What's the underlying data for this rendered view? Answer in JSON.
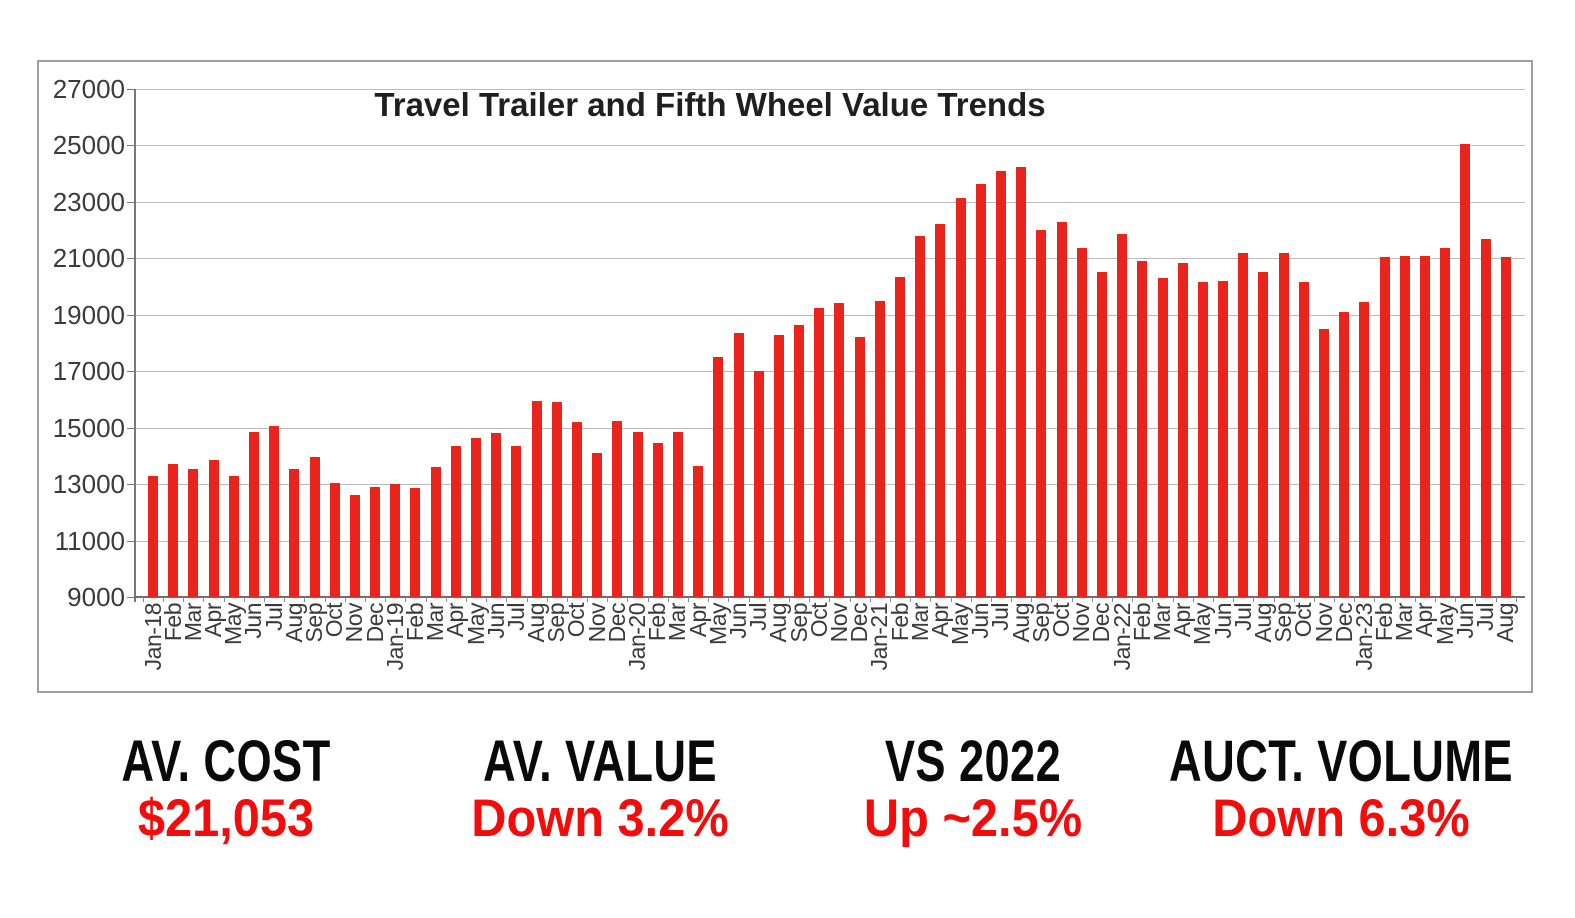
{
  "chart_data": {
    "type": "bar",
    "title": "Travel Trailer and Fifth Wheel Value Trends",
    "xlabel": "",
    "ylabel": "",
    "ylim": [
      9000,
      27000
    ],
    "ytick_step": 2000,
    "yticks": [
      9000,
      11000,
      13000,
      15000,
      17000,
      19000,
      21000,
      23000,
      25000,
      27000
    ],
    "grid": true,
    "legend_position": "none",
    "bar_color": "#e8241d",
    "categories": [
      "Jan-18",
      "Feb",
      "Mar",
      "Apr",
      "May",
      "Jun",
      "Jul",
      "Aug",
      "Sep",
      "Oct",
      "Nov",
      "Dec",
      "Jan-19",
      "Feb",
      "Mar",
      "Apr",
      "May",
      "Jun",
      "Jul",
      "Aug",
      "Sep",
      "Oct",
      "Nov",
      "Dec",
      "Jan-20",
      "Feb",
      "Mar",
      "Apr",
      "May",
      "Jun",
      "Jul",
      "Aug",
      "Sep",
      "Oct",
      "Nov",
      "Dec",
      "Jan-21",
      "Feb",
      "Mar",
      "Apr",
      "May",
      "Jun",
      "Jul",
      "Aug",
      "Sep",
      "Oct",
      "Nov",
      "Dec",
      "Jan-22",
      "Feb",
      "Mar",
      "Apr",
      "May",
      "Jun",
      "Jul",
      "Aug",
      "Sep",
      "Oct",
      "Nov",
      "Dec",
      "Jan-23",
      "Feb",
      "Mar",
      "Apr",
      "May",
      "Jun",
      "Jul",
      "Aug"
    ],
    "values": [
      13300,
      13700,
      13550,
      13850,
      13300,
      14850,
      15050,
      13550,
      13950,
      13050,
      12600,
      12900,
      13000,
      12850,
      13600,
      14350,
      14650,
      14800,
      14350,
      15950,
      15900,
      15200,
      14100,
      15250,
      14850,
      14450,
      14850,
      13650,
      17500,
      18350,
      17000,
      18300,
      18650,
      19250,
      19400,
      18200,
      19500,
      20350,
      21800,
      22200,
      23150,
      23650,
      24100,
      24250,
      22000,
      22300,
      21350,
      20500,
      21850,
      20900,
      20300,
      20850,
      20150,
      20200,
      21200,
      20500,
      21200,
      20150,
      18500,
      19100,
      19450,
      21050,
      21100,
      21100,
      21350,
      25050,
      21700,
      21053
    ]
  },
  "stats": [
    {
      "label": "AV. COST",
      "value": "$21,053"
    },
    {
      "label": "AV. VALUE",
      "value": "Down 3.2%"
    },
    {
      "label": "VS 2022",
      "value": "Up ~2.5%"
    },
    {
      "label": "AUCT. VOLUME",
      "value": "Down 6.3%"
    }
  ],
  "colors": {
    "bar_red": "#e8241d",
    "stat_value_red": "#f20d0d",
    "stat_label_black": "#0a0a0a"
  }
}
